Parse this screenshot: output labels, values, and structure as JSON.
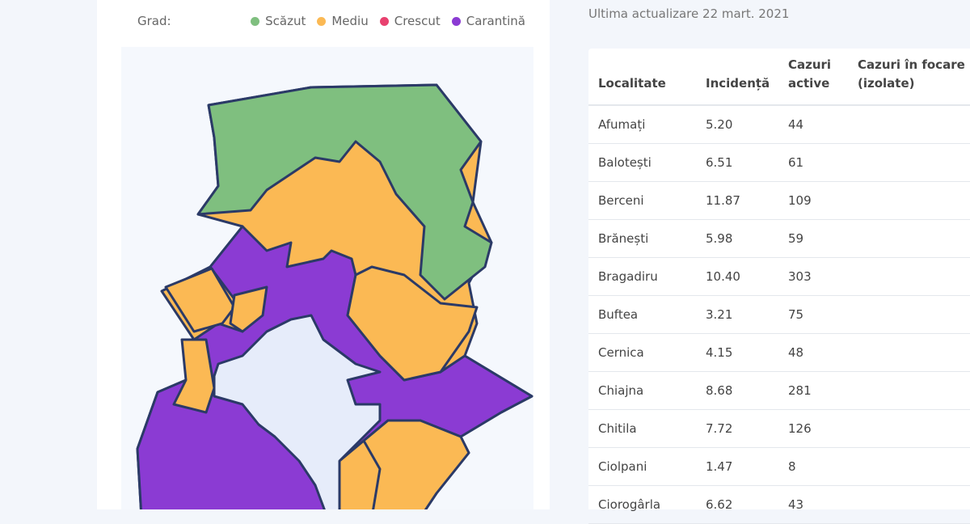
{
  "legend": {
    "label": "Grad:",
    "items": [
      {
        "name": "Scăzut",
        "color": "#7fbf7f"
      },
      {
        "name": "Mediu",
        "color": "#fbb954"
      },
      {
        "name": "Crescut",
        "color": "#e8416f"
      },
      {
        "name": "Carantină",
        "color": "#8b3bd3"
      }
    ]
  },
  "update": "Ultima actualizare 22 mart. 2021",
  "table": {
    "headers": [
      "Localitate",
      "Incidență",
      "Cazuri active",
      "Cazuri în focare (izolate)"
    ],
    "rows": [
      [
        "Afumați",
        "5.20",
        "44"
      ],
      [
        "Balotești",
        "6.51",
        "61"
      ],
      [
        "Berceni",
        "11.87",
        "109"
      ],
      [
        "Brănești",
        "5.98",
        "59"
      ],
      [
        "Bragadiru",
        "10.40",
        "303"
      ],
      [
        "Buftea",
        "3.21",
        "75"
      ],
      [
        "Cernica",
        "4.15",
        "48"
      ],
      [
        "Chiajna",
        "8.68",
        "281"
      ],
      [
        "Chitila",
        "7.72",
        "126"
      ],
      [
        "Ciolpani",
        "1.47",
        "8"
      ],
      [
        "Ciorogârla",
        "6.62",
        "43"
      ]
    ]
  }
}
